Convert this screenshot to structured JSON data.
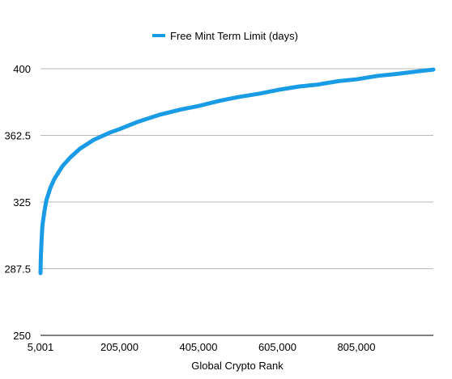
{
  "chart_data": {
    "type": "line",
    "title": "",
    "xlabel": "Global Crypto Rank",
    "ylabel": "",
    "xlim": [
      5001,
      1000000
    ],
    "ylim": [
      250,
      400
    ],
    "x_tick_labels": [
      "5,001",
      "205,000",
      "405,000",
      "605,000",
      "805,000"
    ],
    "x_tick_values": [
      5001,
      205000,
      405000,
      605000,
      805000
    ],
    "y_tick_labels": [
      "250",
      "287.5",
      "325",
      "362.5",
      "400"
    ],
    "y_tick_values": [
      250,
      287.5,
      325,
      362.5,
      400
    ],
    "grid": "horizontal",
    "legend_position": "top-center",
    "series": [
      {
        "name": "Free Mint Term Limit (days)",
        "color": "#1a9be6",
        "x": [
          5001,
          6000,
          8000,
          10000,
          15000,
          20000,
          30000,
          40000,
          60000,
          80000,
          105000,
          140000,
          180000,
          205000,
          250000,
          305000,
          360000,
          405000,
          460000,
          505000,
          560000,
          605000,
          660000,
          705000,
          760000,
          805000,
          860000,
          905000,
          960000,
          1000000
        ],
        "values": [
          285,
          295,
          305,
          312,
          320,
          326,
          333,
          338,
          345,
          350,
          355,
          360,
          364,
          366,
          370,
          374,
          377,
          379,
          382,
          384,
          386,
          388,
          390,
          391,
          393,
          394,
          396,
          397,
          398.5,
          399.5
        ]
      }
    ]
  }
}
